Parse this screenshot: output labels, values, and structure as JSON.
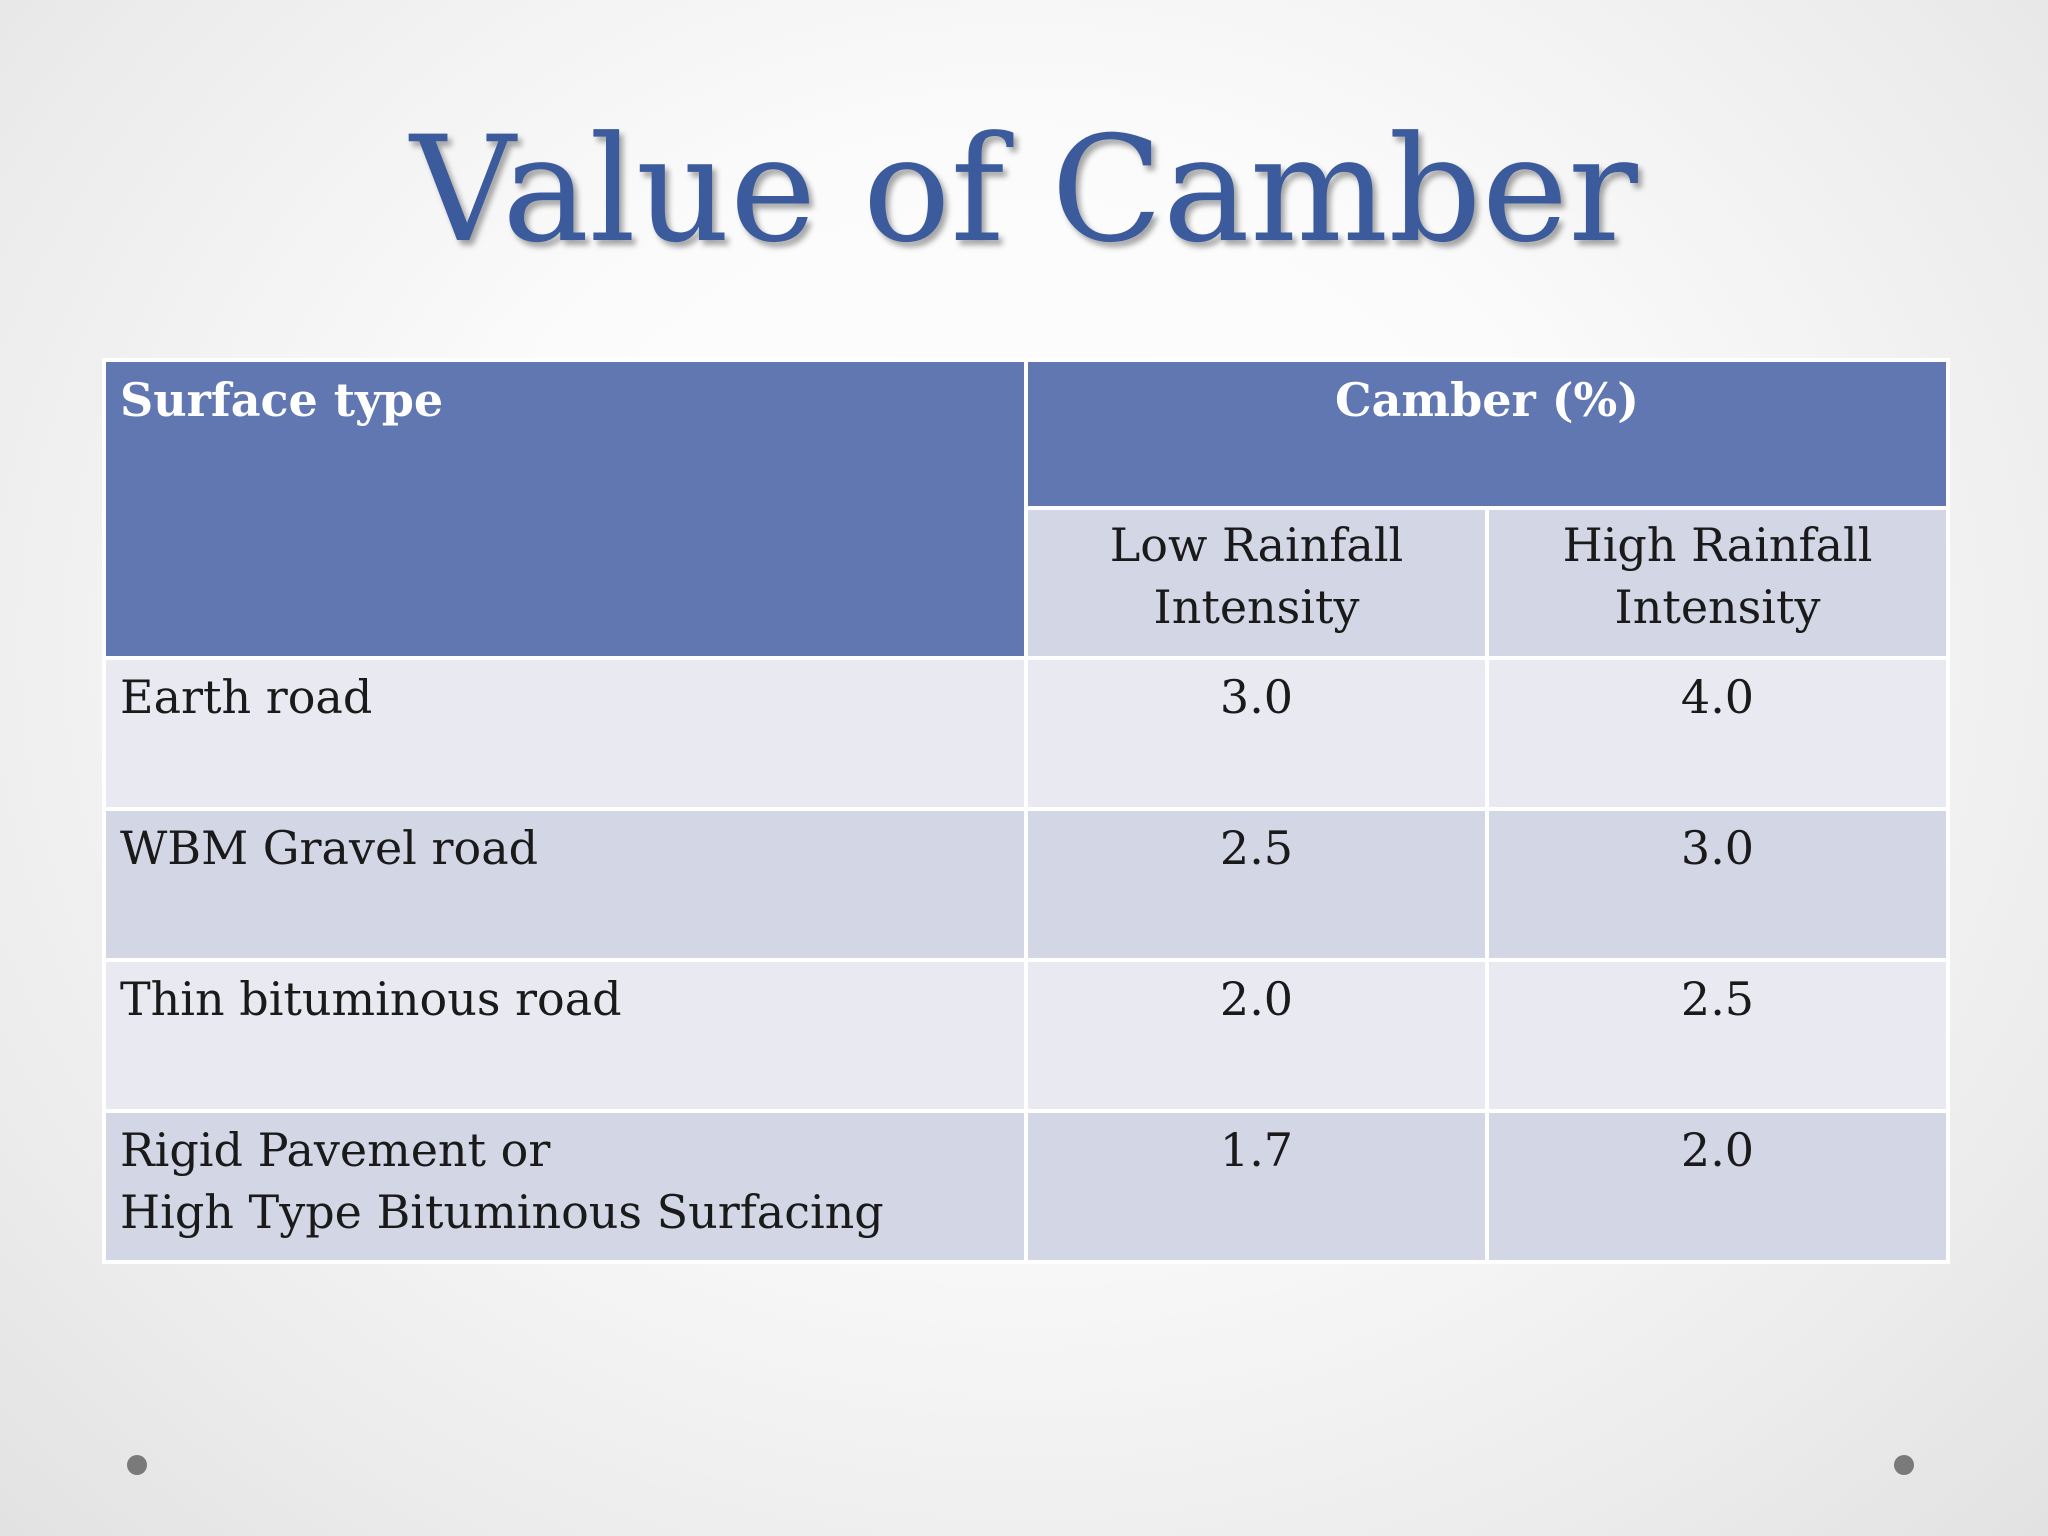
{
  "title": "Value of Camber",
  "table": {
    "headers": {
      "surface_type": "Surface type",
      "camber": "Camber (%)",
      "low_rainfall": [
        "Low Rainfall",
        "Intensity"
      ],
      "high_rainfall": [
        "High Rainfall",
        "Intensity"
      ]
    },
    "rows": [
      {
        "surface": [
          "Earth road"
        ],
        "low": "3.0",
        "high": "4.0"
      },
      {
        "surface": [
          "WBM Gravel road"
        ],
        "low": "2.5",
        "high": "3.0"
      },
      {
        "surface": [
          "Thin bituminous road"
        ],
        "low": "2.0",
        "high": "2.5"
      },
      {
        "surface": [
          "Rigid Pavement or",
          "High Type Bituminous Surfacing"
        ],
        "low": "1.7",
        "high": "2.0"
      }
    ]
  },
  "colors": {
    "title": "#3b5b9c",
    "header_fill": "#6177b2",
    "row_light": "#e9eaf1",
    "row_dark": "#d2d6e5"
  }
}
